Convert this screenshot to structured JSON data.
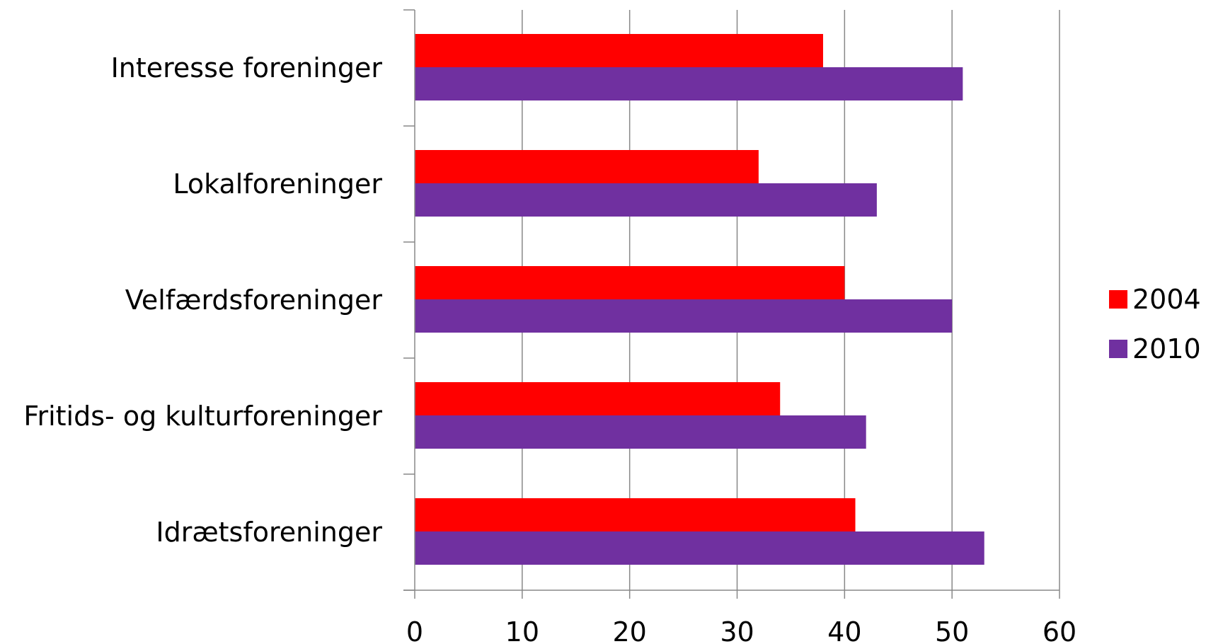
{
  "chart_data": {
    "type": "bar",
    "orientation": "horizontal",
    "categories": [
      "Interesse foreninger",
      "Lokalforeninger",
      "Velfærdsforeninger",
      "Fritids- og kulturforeninger",
      "Idrætsforeninger"
    ],
    "series": [
      {
        "name": "2004",
        "color": "#ff0000",
        "values": [
          38,
          32,
          40,
          34,
          41
        ]
      },
      {
        "name": "2010",
        "color": "#7030a0",
        "values": [
          51,
          43,
          50,
          42,
          53
        ]
      }
    ],
    "xlim": [
      0,
      60
    ],
    "xticks": [
      "0",
      "10",
      "20",
      "30",
      "40",
      "50",
      "60"
    ],
    "grid": "vertical",
    "legend_position": "right",
    "title": "",
    "xlabel": "",
    "ylabel": ""
  }
}
